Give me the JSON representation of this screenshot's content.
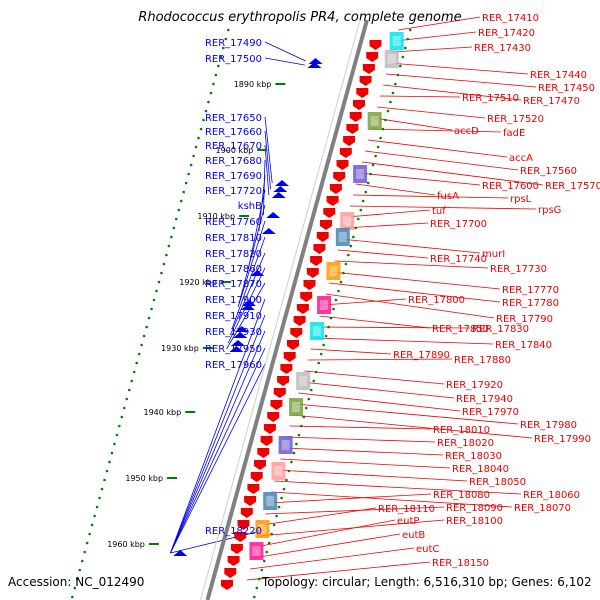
{
  "header": {
    "title": "Rhodococcus erythropolis PR4, complete genome"
  },
  "footer": {
    "accession": "Accession: NC_012490",
    "topology": "Topology: circular; Length: 6,516,310 bp; Genes: 6,102"
  },
  "scale_ticks": [
    "1890 kbp",
    "1900 kbp",
    "1910 kbp",
    "1920 kbp",
    "1930 kbp",
    "1940 kbp",
    "1950 kbp",
    "1960 kbp"
  ],
  "left_labels": [
    "RER_17490",
    "RER_17500",
    "RER_17650",
    "RER_17660",
    "RER_17670",
    "RER_17680",
    "RER_17690",
    "RER_17720",
    "kshB",
    "RER_17760",
    "RER_17810",
    "RER_17820",
    "RER_17860",
    "RER_17870",
    "RER_17900",
    "RER_17910",
    "RER_17930",
    "RER_17950",
    "RER_17960",
    "RER_18220"
  ],
  "right_labels": [
    "RER_17410",
    "RER_17420",
    "RER_17430",
    "RER_17440",
    "RER_17450",
    "RER_17470",
    "RER_17510",
    "RER_17520",
    "accD",
    "fadE",
    "accA",
    "RER_17560",
    "RER_17570",
    "RER_17600",
    "fusA",
    "rpsL",
    "rpsG",
    "tuf",
    "RER_17700",
    "murI",
    "RER_17740",
    "RER_17730",
    "RER_17770",
    "RER_17780",
    "RER_17790",
    "RER_17800",
    "RER_17850",
    "RER_17830",
    "RER_17840",
    "RER_17890",
    "RER_17880",
    "RER_17920",
    "RER_17940",
    "RER_17970",
    "RER_17980",
    "RER_17990",
    "RER_18010",
    "RER_18020",
    "RER_18030",
    "RER_18040",
    "RER_18050",
    "RER_18060",
    "RER_18070",
    "RER_18080",
    "RER_18090",
    "RER_18110",
    "RER_18100",
    "eutP",
    "eutB",
    "eutC",
    "RER_18150"
  ],
  "colors": {
    "forward_strand": "#0000ee",
    "reverse_strand": "#ee0000",
    "backbone": "#808080",
    "gc_dots": "#008000",
    "feature_cyan": "#00e5ee",
    "feature_gray": "#bbbbbb",
    "feature_olive": "#7aa03c",
    "feature_purple": "#6a5acd",
    "feature_pink": "#ff9a9a",
    "feature_magenta": "#ff1493",
    "feature_orange": "#ff9900",
    "feature_steel": "#4682b4"
  }
}
